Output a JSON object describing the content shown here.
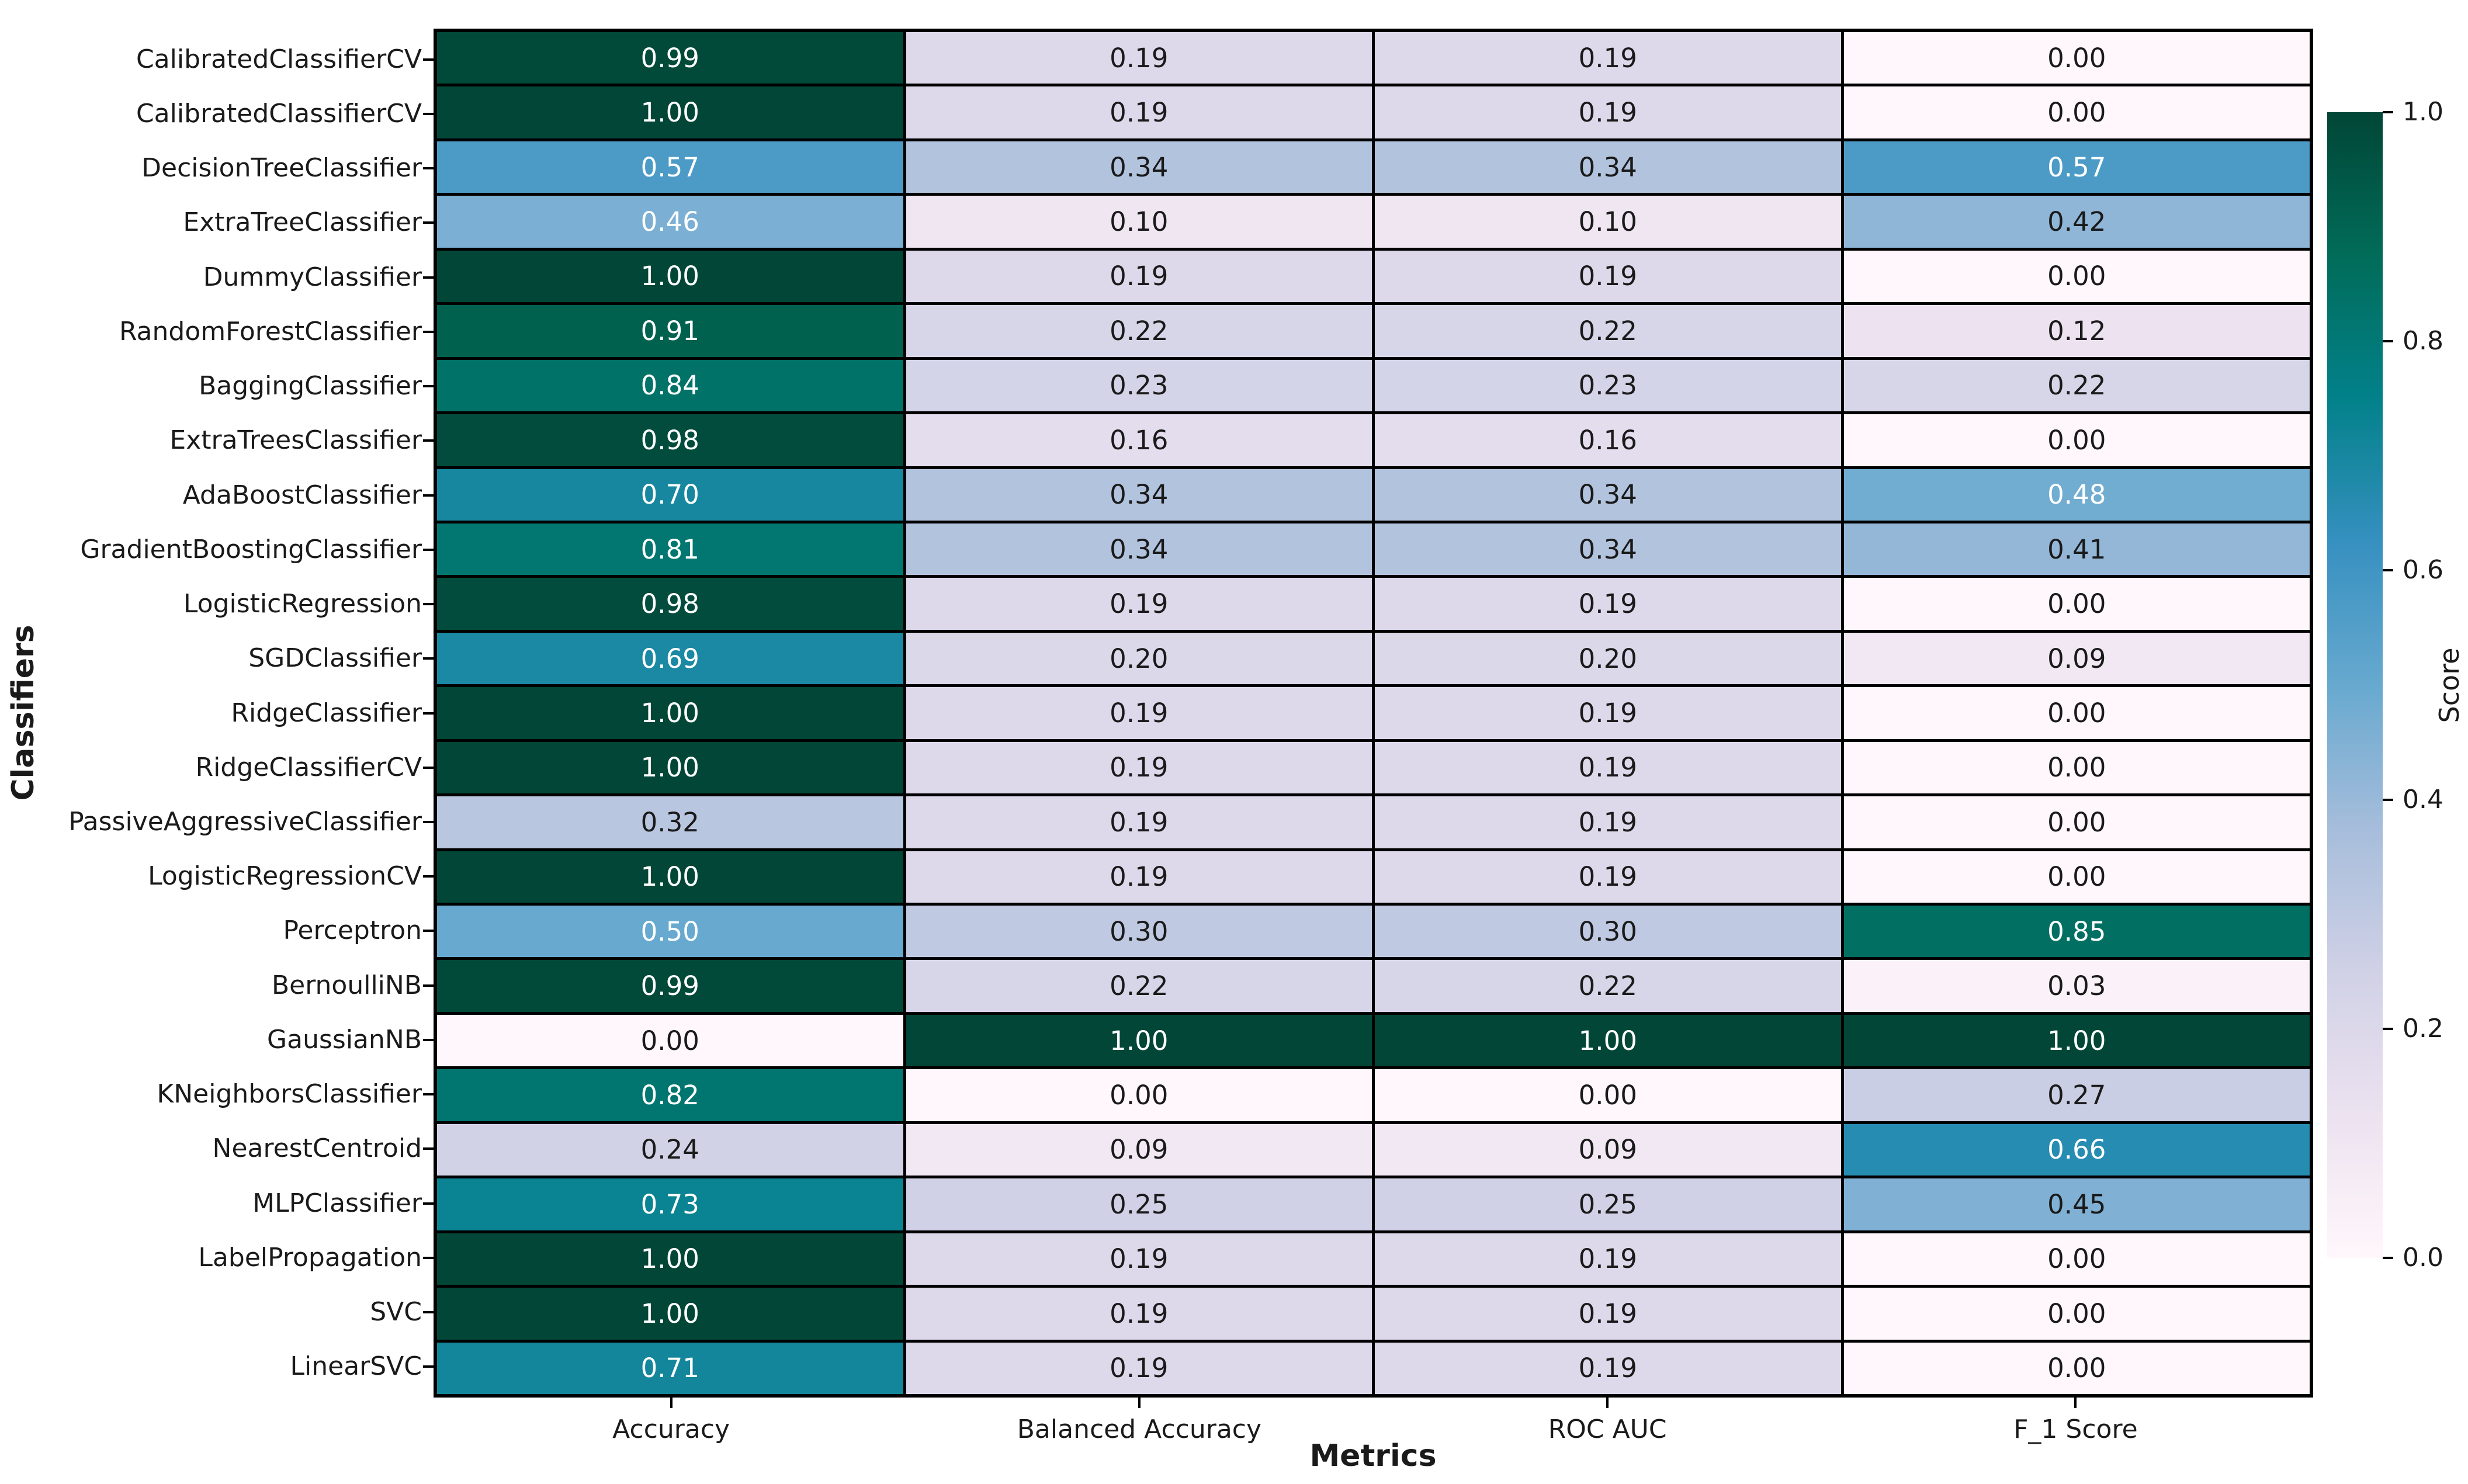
{
  "chart_data": {
    "type": "heatmap",
    "title": "",
    "xlabel": "Metrics",
    "ylabel": "Classifiers",
    "colorbar_label": "Score",
    "categories_x": [
      "Accuracy",
      "Balanced Accuracy",
      "ROC AUC",
      "F_1 Score"
    ],
    "categories_y": [
      "CalibratedClassifierCV",
      "CalibratedClassifierCV",
      "DecisionTreeClassifier",
      "ExtraTreeClassifier",
      "DummyClassifier",
      "RandomForestClassifier",
      "BaggingClassifier",
      "ExtraTreesClassifier",
      "AdaBoostClassifier",
      "GradientBoostingClassifier",
      "LogisticRegression",
      "SGDClassifier",
      "RidgeClassifier",
      "RidgeClassifierCV",
      "PassiveAggressiveClassifier",
      "LogisticRegressionCV",
      "Perceptron",
      "BernoulliNB",
      "GaussianNB",
      "KNeighborsClassifier",
      "NearestCentroid",
      "MLPClassifier",
      "LabelPropagation",
      "SVC",
      "LinearSVC"
    ],
    "values": [
      [
        0.99,
        0.19,
        0.19,
        0.0
      ],
      [
        1.0,
        0.19,
        0.19,
        0.0
      ],
      [
        0.57,
        0.34,
        0.34,
        0.57
      ],
      [
        0.46,
        0.1,
        0.1,
        0.42
      ],
      [
        1.0,
        0.19,
        0.19,
        0.0
      ],
      [
        0.91,
        0.22,
        0.22,
        0.12
      ],
      [
        0.84,
        0.23,
        0.23,
        0.22
      ],
      [
        0.98,
        0.16,
        0.16,
        0.0
      ],
      [
        0.7,
        0.34,
        0.34,
        0.48
      ],
      [
        0.81,
        0.34,
        0.34,
        0.41
      ],
      [
        0.98,
        0.19,
        0.19,
        0.0
      ],
      [
        0.69,
        0.2,
        0.2,
        0.09
      ],
      [
        1.0,
        0.19,
        0.19,
        0.0
      ],
      [
        1.0,
        0.19,
        0.19,
        0.0
      ],
      [
        0.32,
        0.19,
        0.19,
        0.0
      ],
      [
        1.0,
        0.19,
        0.19,
        0.0
      ],
      [
        0.5,
        0.3,
        0.3,
        0.85
      ],
      [
        0.99,
        0.22,
        0.22,
        0.03
      ],
      [
        0.0,
        1.0,
        1.0,
        1.0
      ],
      [
        0.82,
        0.0,
        0.0,
        0.27
      ],
      [
        0.24,
        0.09,
        0.09,
        0.66
      ],
      [
        0.73,
        0.25,
        0.25,
        0.45
      ],
      [
        1.0,
        0.19,
        0.19,
        0.0
      ],
      [
        1.0,
        0.19,
        0.19,
        0.0
      ],
      [
        0.71,
        0.19,
        0.19,
        0.0
      ]
    ],
    "value_decimals": 2,
    "vmin": 0.0,
    "vmax": 1.0,
    "colorbar_ticks": [
      "1.0",
      "0.8",
      "0.6",
      "0.4",
      "0.2",
      "0.0"
    ],
    "colorbar_position": "right",
    "grid_on": true,
    "colormap_name": "PuBuGn",
    "colormap_stops": [
      {
        "pos": 0.0,
        "color": "#fff7fb"
      },
      {
        "pos": 0.125,
        "color": "#ece2f0"
      },
      {
        "pos": 0.25,
        "color": "#d0d1e6"
      },
      {
        "pos": 0.375,
        "color": "#a6bddb"
      },
      {
        "pos": 0.5,
        "color": "#67a9cf"
      },
      {
        "pos": 0.625,
        "color": "#3690c0"
      },
      {
        "pos": 0.75,
        "color": "#02818a"
      },
      {
        "pos": 0.875,
        "color": "#016c59"
      },
      {
        "pos": 1.0,
        "color": "#014636"
      }
    ],
    "gridline_color": "#000000",
    "annot_text_light": "#ffffff",
    "annot_text_dark": "#1a1a1a",
    "annot_white_threshold": 0.46
  }
}
